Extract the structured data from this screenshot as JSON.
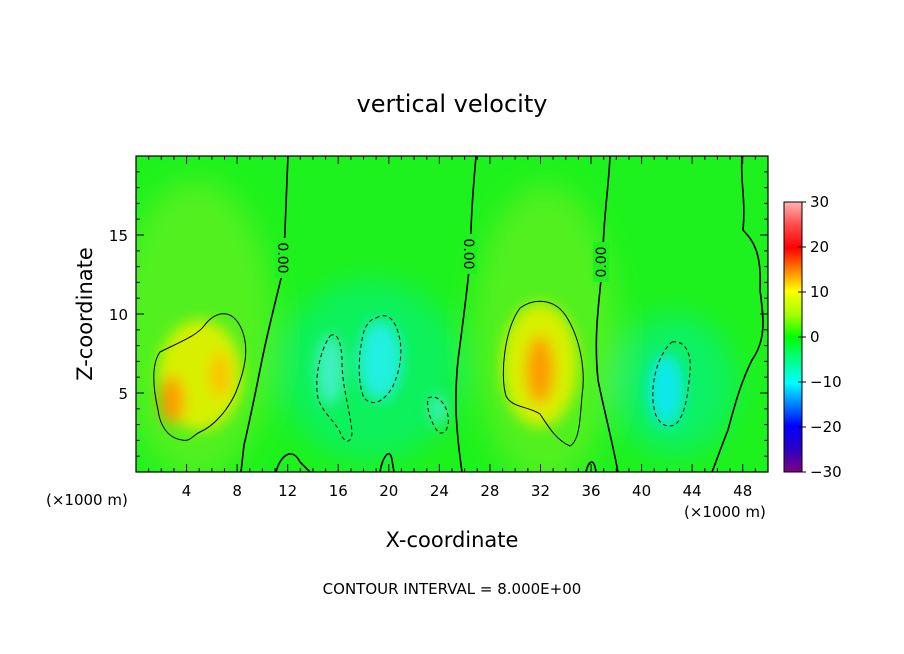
{
  "chart_data": {
    "type": "heatmap",
    "title": "vertical velocity",
    "xlabel": "X-coordinate",
    "ylabel": "Z-coordinate",
    "x_unit_left": "(×1000 m)",
    "x_unit_right": "(×1000 m)",
    "footer": "CONTOUR INTERVAL = 8.000E+00",
    "xlim": [
      0,
      50
    ],
    "ylim": [
      0,
      20
    ],
    "x_ticks": [
      4,
      8,
      12,
      16,
      20,
      24,
      28,
      32,
      36,
      40,
      44,
      48
    ],
    "y_ticks": [
      5,
      10,
      15
    ],
    "colorbar": {
      "range": [
        -30,
        30
      ],
      "ticks": [
        30,
        20,
        10,
        0,
        -10,
        -20,
        -30
      ],
      "tick_labels": [
        "30",
        "20",
        "10",
        "0",
        "−10",
        "−20",
        "−30"
      ]
    },
    "contour_interval": 8,
    "zero_contour_labels": [
      "0.00",
      "0.00",
      "0.00"
    ],
    "features": [
      {
        "kind": "updraft",
        "x": 4.5,
        "z": 6.0,
        "peak": 14
      },
      {
        "kind": "updraft",
        "x": 32.0,
        "z": 6.5,
        "peak": 14
      },
      {
        "kind": "downdraft",
        "x": 19.0,
        "z": 6.5,
        "peak": -9
      },
      {
        "kind": "downdraft",
        "x": 15.5,
        "z": 5.5,
        "peak": -6
      },
      {
        "kind": "downdraft",
        "x": 24.0,
        "z": 4.0,
        "peak": -5
      },
      {
        "kind": "downdraft",
        "x": 42.5,
        "z": 5.5,
        "peak": -10
      }
    ]
  }
}
